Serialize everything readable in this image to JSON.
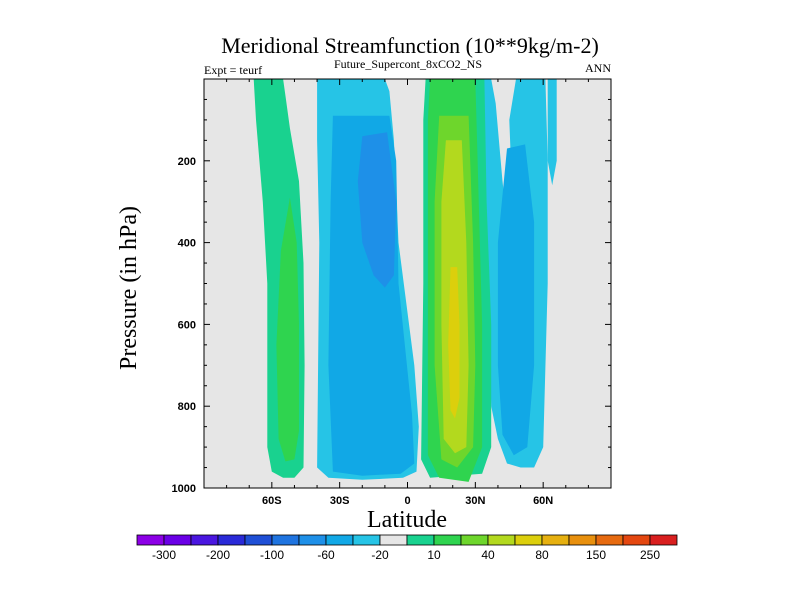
{
  "chart_data": {
    "type": "contour",
    "title": "Meridional Streamfunction (10**9kg/m-2)",
    "left_string": "Expt = teurf",
    "center_string": "Future_Supercont_8xCO2_NS",
    "right_string": "ANN",
    "xlabel": "Latitude",
    "ylabel": "Pressure (in hPa)",
    "xlim": [
      -90,
      90
    ],
    "ylim": [
      1000,
      0
    ],
    "y_inverted": true,
    "x_ticks": [
      {
        "value": -60,
        "label": "60S"
      },
      {
        "value": -30,
        "label": "30S"
      },
      {
        "value": 0,
        "label": "0"
      },
      {
        "value": 30,
        "label": "30N"
      },
      {
        "value": 60,
        "label": "60N"
      }
    ],
    "y_ticks": [
      {
        "value": 200,
        "label": "200"
      },
      {
        "value": 400,
        "label": "400"
      },
      {
        "value": 600,
        "label": "600"
      },
      {
        "value": 800,
        "label": "800"
      },
      {
        "value": 1000,
        "label": "1000"
      }
    ],
    "background_color": "#e6e6e6",
    "colorbar": {
      "colors": [
        "#8c00e6",
        "#6a00e6",
        "#4a16e0",
        "#2a2ad8",
        "#1f4fd6",
        "#1f74e0",
        "#1e90e8",
        "#11a8e6",
        "#26c4e6",
        "#e6e6e6",
        "#19d28f",
        "#2fd44f",
        "#6ed62c",
        "#b3d91e",
        "#dccf0c",
        "#e6b010",
        "#e8900e",
        "#e66a10",
        "#e44710",
        "#d91f1f"
      ],
      "labels": [
        "-300",
        "-200",
        "-100",
        "-60",
        "-20",
        "10",
        "40",
        "80",
        "150",
        "250"
      ]
    },
    "regions": [
      {
        "level": "10",
        "color": "#19d28f",
        "points": [
          [
            -68,
            0
          ],
          [
            -55,
            0
          ],
          [
            -54,
            40
          ],
          [
            -52,
            120
          ],
          [
            -48,
            250
          ],
          [
            -46,
            450
          ],
          [
            -45.5,
            700
          ],
          [
            -46,
            950
          ],
          [
            -50,
            975
          ],
          [
            -55,
            975
          ],
          [
            -60,
            960
          ],
          [
            -62,
            900
          ],
          [
            -62,
            500
          ],
          [
            -64,
            300
          ],
          [
            -67,
            100
          ]
        ]
      },
      {
        "level": "40",
        "color": "#2fd44f",
        "points": [
          [
            -52,
            290
          ],
          [
            -49,
            400
          ],
          [
            -48,
            600
          ],
          [
            -48,
            860
          ],
          [
            -50,
            930
          ],
          [
            -54,
            935
          ],
          [
            -57,
            880
          ],
          [
            -58,
            650
          ],
          [
            -56,
            420
          ]
        ]
      },
      {
        "level": "-20",
        "color": "#26c4e6",
        "points": [
          [
            -40,
            0
          ],
          [
            -10,
            0
          ],
          [
            -8,
            30
          ],
          [
            -6,
            150
          ],
          [
            -4,
            400
          ],
          [
            3,
            700
          ],
          [
            5,
            850
          ],
          [
            4,
            960
          ],
          [
            -2,
            975
          ],
          [
            -20,
            980
          ],
          [
            -35,
            975
          ],
          [
            -40,
            950
          ],
          [
            -39,
            400
          ],
          [
            -40,
            150
          ]
        ]
      },
      {
        "level": "-20",
        "color": "#26c4e6",
        "points": [
          [
            31,
            0
          ],
          [
            37,
            0
          ],
          [
            39,
            60
          ],
          [
            42,
            250
          ],
          [
            44,
            350
          ],
          [
            46,
            240
          ],
          [
            45,
            100
          ],
          [
            48,
            0
          ],
          [
            61,
            0
          ],
          [
            62,
            200
          ],
          [
            62,
            500
          ],
          [
            60,
            900
          ],
          [
            56,
            950
          ],
          [
            50,
            950
          ],
          [
            44,
            940
          ],
          [
            40,
            880
          ],
          [
            37,
            800
          ],
          [
            35,
            400
          ],
          [
            34,
            200
          ]
        ]
      },
      {
        "level": "-20",
        "color": "#26c4e6",
        "points": [
          [
            62,
            0
          ],
          [
            66,
            0
          ],
          [
            66,
            200
          ],
          [
            64,
            260
          ],
          [
            62,
            200
          ]
        ]
      },
      {
        "level": "-60",
        "color": "#11a8e6",
        "points": [
          [
            -33,
            90
          ],
          [
            -8,
            90
          ],
          [
            -5,
            200
          ],
          [
            -4,
            500
          ],
          [
            2,
            820
          ],
          [
            3,
            940
          ],
          [
            -3,
            965
          ],
          [
            -20,
            970
          ],
          [
            -33,
            960
          ],
          [
            -35,
            700
          ],
          [
            -34,
            300
          ]
        ]
      },
      {
        "level": "-60",
        "color": "#11a8e6",
        "points": [
          [
            44,
            170
          ],
          [
            52,
            160
          ],
          [
            56,
            350
          ],
          [
            56,
            700
          ],
          [
            53,
            900
          ],
          [
            47,
            920
          ],
          [
            42,
            870
          ],
          [
            40,
            700
          ],
          [
            40,
            400
          ]
        ]
      },
      {
        "level": "-100",
        "color": "#1e90e8",
        "points": [
          [
            -20,
            140
          ],
          [
            -9,
            130
          ],
          [
            -5,
            300
          ],
          [
            -6,
            480
          ],
          [
            -10,
            510
          ],
          [
            -15,
            480
          ],
          [
            -20,
            400
          ],
          [
            -22,
            250
          ]
        ]
      },
      {
        "level": "10",
        "color": "#19d28f",
        "points": [
          [
            8,
            0
          ],
          [
            34,
            0
          ],
          [
            35,
            300
          ],
          [
            37,
            600
          ],
          [
            37,
            900
          ],
          [
            33,
            965
          ],
          [
            10,
            975
          ],
          [
            6,
            930
          ],
          [
            7,
            500
          ],
          [
            7,
            100
          ]
        ]
      },
      {
        "level": "40",
        "color": "#2fd44f",
        "points": [
          [
            10,
            0
          ],
          [
            30,
            0
          ],
          [
            31,
            200
          ],
          [
            33,
            600
          ],
          [
            33,
            900
          ],
          [
            27,
            985
          ],
          [
            14,
            975
          ],
          [
            9,
            920
          ],
          [
            9,
            400
          ],
          [
            9,
            100
          ]
        ]
      },
      {
        "level": "80",
        "color": "#6ed62c",
        "points": [
          [
            14,
            90
          ],
          [
            27,
            90
          ],
          [
            29,
            400
          ],
          [
            30,
            700
          ],
          [
            29,
            900
          ],
          [
            22,
            950
          ],
          [
            15,
            930
          ],
          [
            12,
            700
          ],
          [
            12,
            300
          ]
        ]
      },
      {
        "level": "150",
        "color": "#b3d91e",
        "points": [
          [
            17,
            150
          ],
          [
            24,
            150
          ],
          [
            26,
            400
          ],
          [
            27,
            700
          ],
          [
            26,
            900
          ],
          [
            21,
            915
          ],
          [
            16,
            880
          ],
          [
            15,
            600
          ],
          [
            15,
            300
          ]
        ]
      },
      {
        "level": "250",
        "color": "#dccf0c",
        "points": [
          [
            19,
            460
          ],
          [
            22,
            460
          ],
          [
            23,
            600
          ],
          [
            23,
            780
          ],
          [
            21,
            830
          ],
          [
            19,
            810
          ],
          [
            18,
            650
          ]
        ]
      }
    ]
  }
}
